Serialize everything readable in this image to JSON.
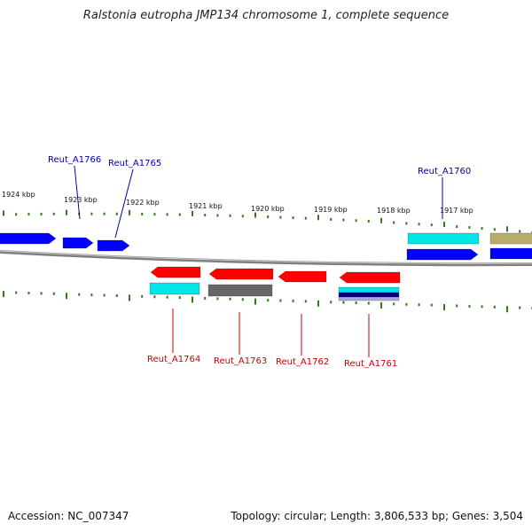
{
  "title": "Ralstonia eutropha JMP134 chromosome 1, complete sequence",
  "footer": {
    "accession": "Accession: NC_007347",
    "summary": "Topology: circular; Length: 3,806,533 bp; Genes: 3,504"
  },
  "colors": {
    "forward_gene": "#0000ff",
    "reverse_gene": "#ff0000",
    "cds_cyan": "#00e5e5",
    "cds_gray": "#666666",
    "cds_olive": "#b5ad6a",
    "tick": "#2e7d1a",
    "backbone": "#808080",
    "label_forward": "#0000aa",
    "label_reverse": "#cc0000"
  },
  "scale": {
    "kbp_labels": [
      "1924 kbp",
      "1923 kbp",
      "1922 kbp",
      "1921 kbp",
      "1920 kbp",
      "1919 kbp",
      "1918 kbp",
      "1917 kbp"
    ]
  },
  "genes": {
    "top": [
      "Reut_A1766",
      "Reut_A1765",
      "Reut_A1760"
    ],
    "bottom": [
      "Reut_A1764",
      "Reut_A1763",
      "Reut_A1762",
      "Reut_A1761"
    ]
  }
}
